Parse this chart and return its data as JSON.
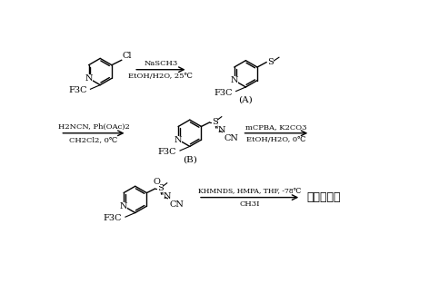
{
  "bg_color": "#ffffff",
  "row1": {
    "arrow1_top": "NaSCH3",
    "arrow1_bot": "EtOH/H2O, 25℃",
    "mol2_label": "(A)"
  },
  "row2": {
    "arrow2_top": "H2NCN, Ph(OAc)2",
    "arrow2_bot": "CH2Cl2, 0℃",
    "mol3_label": "(B)",
    "arrow3_top": "mCPBA, K2CO3",
    "arrow3_bot": "EtOH/H2O, 0℃"
  },
  "row3": {
    "arrow4_top": "KHMNDS, HMPA, THF, -78℃",
    "arrow4_bot": "CH3I",
    "product": "氟啖虫胺腈"
  }
}
